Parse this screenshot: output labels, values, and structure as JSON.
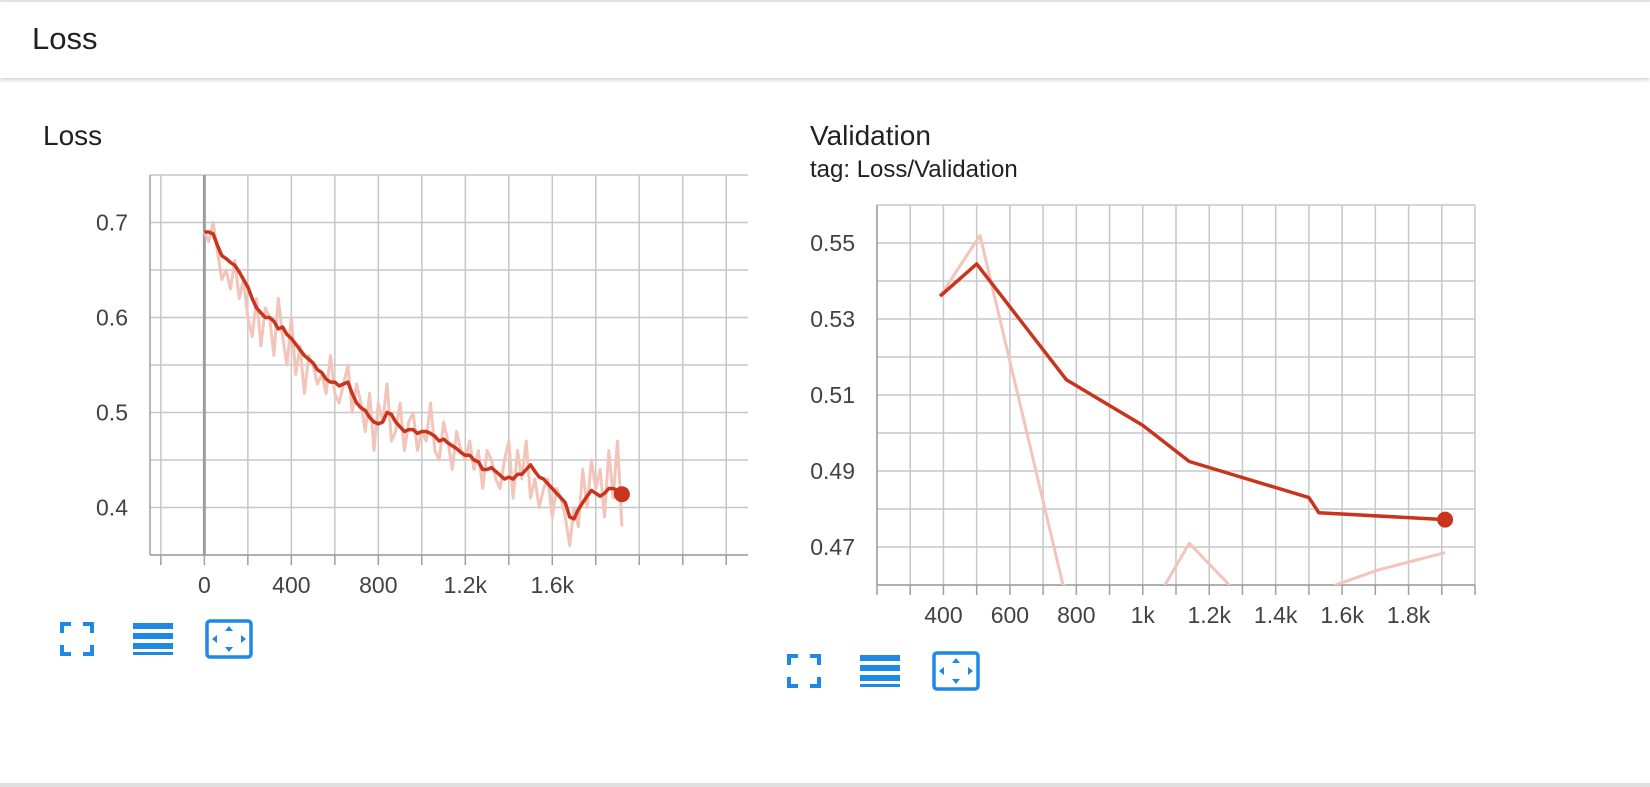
{
  "header": {
    "title": "Loss"
  },
  "colors": {
    "accent": "#1e88e5",
    "line": "#c9341c",
    "line_raw": "#f3c4b9",
    "grid": "#c7c7c7",
    "axis": "#9e9e9e"
  },
  "charts": [
    {
      "title": "Loss",
      "subtitle": "",
      "toolbar": [
        "fullscreen-icon",
        "list-icon",
        "fit-domain-icon"
      ]
    },
    {
      "title": "Validation",
      "subtitle": "tag: Loss/Validation",
      "toolbar": [
        "fullscreen-icon",
        "list-icon",
        "fit-domain-icon"
      ]
    }
  ],
  "chart_data": [
    {
      "type": "line",
      "title": "Loss",
      "xlabel": "",
      "ylabel": "",
      "xlim": [
        -250,
        2500
      ],
      "ylim": [
        0.35,
        0.75
      ],
      "x_ticks": [
        0,
        400,
        800,
        1200,
        1600
      ],
      "x_tick_labels": [
        "0",
        "400",
        "800",
        "1.2k",
        "1.6k"
      ],
      "y_ticks": [
        0.4,
        0.5,
        0.6,
        0.7
      ],
      "y_tick_labels": [
        "0.4",
        "0.5",
        "0.6",
        "0.7"
      ],
      "grid": true,
      "series": [
        {
          "role": "raw",
          "x": [
            0,
            20,
            40,
            60,
            80,
            100,
            120,
            140,
            160,
            180,
            200,
            220,
            240,
            260,
            280,
            300,
            320,
            340,
            360,
            380,
            400,
            420,
            440,
            460,
            480,
            500,
            520,
            540,
            560,
            580,
            600,
            620,
            640,
            660,
            680,
            700,
            720,
            740,
            760,
            780,
            800,
            820,
            840,
            860,
            880,
            900,
            920,
            940,
            960,
            980,
            1000,
            1020,
            1040,
            1060,
            1080,
            1100,
            1120,
            1140,
            1160,
            1180,
            1200,
            1220,
            1240,
            1260,
            1280,
            1300,
            1320,
            1340,
            1360,
            1380,
            1400,
            1420,
            1440,
            1460,
            1480,
            1500,
            1520,
            1540,
            1560,
            1580,
            1600,
            1620,
            1640,
            1660,
            1680,
            1700,
            1720,
            1740,
            1760,
            1780,
            1800,
            1820,
            1840,
            1860,
            1880,
            1900,
            1920
          ],
          "y": [
            0.69,
            0.68,
            0.7,
            0.67,
            0.64,
            0.65,
            0.63,
            0.66,
            0.62,
            0.64,
            0.6,
            0.58,
            0.62,
            0.57,
            0.61,
            0.6,
            0.56,
            0.62,
            0.58,
            0.55,
            0.6,
            0.54,
            0.57,
            0.52,
            0.56,
            0.55,
            0.53,
            0.54,
            0.52,
            0.56,
            0.52,
            0.51,
            0.53,
            0.55,
            0.5,
            0.53,
            0.51,
            0.48,
            0.52,
            0.46,
            0.51,
            0.49,
            0.53,
            0.47,
            0.48,
            0.51,
            0.46,
            0.49,
            0.5,
            0.46,
            0.48,
            0.47,
            0.51,
            0.46,
            0.45,
            0.49,
            0.47,
            0.44,
            0.48,
            0.46,
            0.45,
            0.47,
            0.44,
            0.46,
            0.42,
            0.46,
            0.45,
            0.43,
            0.42,
            0.45,
            0.47,
            0.41,
            0.46,
            0.43,
            0.47,
            0.41,
            0.43,
            0.4,
            0.42,
            0.43,
            0.39,
            0.42,
            0.41,
            0.39,
            0.36,
            0.4,
            0.38,
            0.44,
            0.4,
            0.45,
            0.42,
            0.44,
            0.39,
            0.46,
            0.41,
            0.47,
            0.38
          ]
        },
        {
          "role": "smoothed",
          "x": [
            0,
            20,
            40,
            60,
            80,
            100,
            120,
            140,
            160,
            180,
            200,
            220,
            240,
            260,
            280,
            300,
            320,
            340,
            360,
            380,
            400,
            420,
            440,
            460,
            480,
            500,
            520,
            540,
            560,
            580,
            600,
            620,
            640,
            660,
            680,
            700,
            720,
            740,
            760,
            780,
            800,
            820,
            840,
            860,
            880,
            900,
            920,
            940,
            960,
            980,
            1000,
            1020,
            1040,
            1060,
            1080,
            1100,
            1120,
            1140,
            1160,
            1180,
            1200,
            1220,
            1240,
            1260,
            1280,
            1300,
            1320,
            1340,
            1360,
            1380,
            1400,
            1420,
            1440,
            1460,
            1480,
            1500,
            1520,
            1540,
            1560,
            1580,
            1600,
            1620,
            1640,
            1660,
            1680,
            1700,
            1720,
            1740,
            1760,
            1780,
            1800,
            1820,
            1840,
            1860,
            1880,
            1900,
            1920
          ],
          "y": [
            0.69,
            0.69,
            0.688,
            0.676,
            0.665,
            0.662,
            0.658,
            0.655,
            0.648,
            0.64,
            0.632,
            0.62,
            0.61,
            0.605,
            0.6,
            0.6,
            0.596,
            0.588,
            0.59,
            0.582,
            0.578,
            0.572,
            0.566,
            0.56,
            0.556,
            0.552,
            0.545,
            0.542,
            0.535,
            0.532,
            0.532,
            0.528,
            0.53,
            0.532,
            0.52,
            0.51,
            0.505,
            0.502,
            0.495,
            0.49,
            0.488,
            0.49,
            0.5,
            0.498,
            0.49,
            0.485,
            0.48,
            0.482,
            0.482,
            0.478,
            0.48,
            0.48,
            0.478,
            0.475,
            0.47,
            0.472,
            0.468,
            0.465,
            0.462,
            0.458,
            0.455,
            0.455,
            0.45,
            0.448,
            0.44,
            0.44,
            0.442,
            0.438,
            0.434,
            0.43,
            0.432,
            0.43,
            0.435,
            0.435,
            0.44,
            0.445,
            0.438,
            0.432,
            0.43,
            0.425,
            0.42,
            0.415,
            0.41,
            0.405,
            0.39,
            0.388,
            0.398,
            0.405,
            0.412,
            0.418,
            0.415,
            0.412,
            0.415,
            0.42,
            0.42,
            0.418,
            0.414
          ]
        }
      ]
    },
    {
      "type": "line",
      "title": "Validation",
      "subtitle": "tag: Loss/Validation",
      "xlabel": "",
      "ylabel": "",
      "xlim": [
        200,
        2000
      ],
      "ylim": [
        0.46,
        0.56
      ],
      "x_ticks": [
        400,
        600,
        800,
        1000,
        1200,
        1400,
        1600,
        1800
      ],
      "x_tick_labels": [
        "400",
        "600",
        "800",
        "1k",
        "1.2k",
        "1.4k",
        "1.6k",
        "1.8k"
      ],
      "y_ticks": [
        0.47,
        0.49,
        0.51,
        0.53,
        0.55
      ],
      "y_tick_labels": [
        "0.47",
        "0.49",
        "0.51",
        "0.53",
        "0.55"
      ],
      "grid": true,
      "series": [
        {
          "role": "raw",
          "x": [
            390,
            510,
            760,
            1000,
            1140,
            1260,
            1390,
            1520,
            1580,
            1710,
            1910
          ],
          "y": [
            0.536,
            0.552,
            0.46,
            0.45,
            0.471,
            0.46,
            0.44,
            0.42,
            0.46,
            0.464,
            0.4685
          ]
        },
        {
          "role": "smoothed",
          "x": [
            390,
            500,
            770,
            1000,
            1140,
            1500,
            1530,
            1910
          ],
          "y": [
            0.536,
            0.5445,
            0.514,
            0.502,
            0.4925,
            0.483,
            0.479,
            0.4772
          ]
        }
      ]
    }
  ]
}
